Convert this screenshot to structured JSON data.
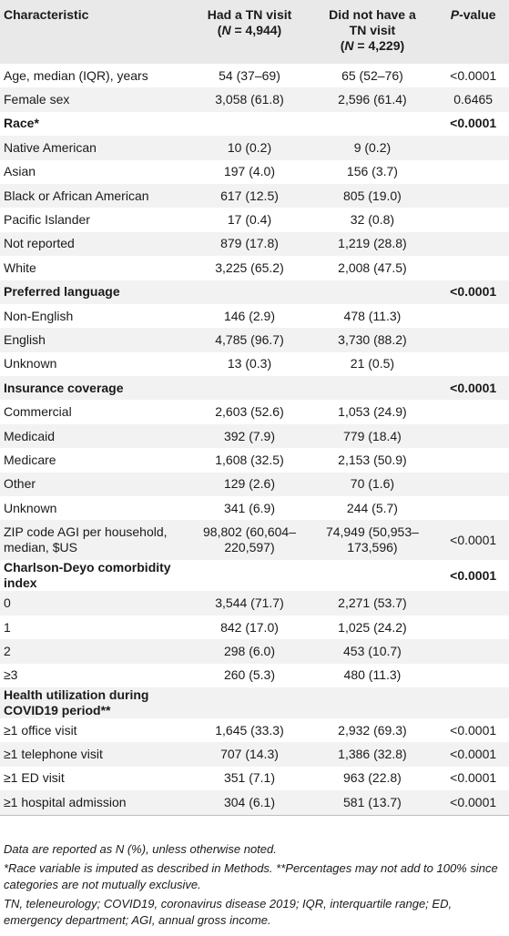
{
  "header": {
    "characteristic": "Characteristic",
    "tn_line1": "Had a TN visit",
    "tn_line2": "(N = 4,944)",
    "notn_line1": "Did not have a",
    "notn_line2": "TN visit",
    "notn_line3": "(N = 4,229)",
    "pvalue": "P-value"
  },
  "rows": [
    {
      "label": "Age, median (IQR), years",
      "tn": "54 (37–69)",
      "notn": "65 (52–76)",
      "p": "<0.0001"
    },
    {
      "label": "Female sex",
      "tn": "3,058 (61.8)",
      "notn": "2,596 (61.4)",
      "p": "0.6465"
    },
    {
      "label": "Race*",
      "tn": "",
      "notn": "",
      "p": "<0.0001"
    },
    {
      "label": "Native American",
      "tn": "10 (0.2)",
      "notn": "9 (0.2)",
      "p": ""
    },
    {
      "label": "Asian",
      "tn": "197 (4.0)",
      "notn": "156 (3.7)",
      "p": ""
    },
    {
      "label": "Black or African American",
      "tn": "617 (12.5)",
      "notn": "805 (19.0)",
      "p": ""
    },
    {
      "label": "Pacific Islander",
      "tn": "17 (0.4)",
      "notn": "32 (0.8)",
      "p": ""
    },
    {
      "label": "Not reported",
      "tn": "879 (17.8)",
      "notn": "1,219 (28.8)",
      "p": ""
    },
    {
      "label": "White",
      "tn": "3,225 (65.2)",
      "notn": "2,008 (47.5)",
      "p": ""
    },
    {
      "label": "Preferred language",
      "tn": "",
      "notn": "",
      "p": "<0.0001"
    },
    {
      "label": "Non-English",
      "tn": "146 (2.9)",
      "notn": "478 (11.3)",
      "p": ""
    },
    {
      "label": "English",
      "tn": "4,785 (96.7)",
      "notn": "3,730 (88.2)",
      "p": ""
    },
    {
      "label": "Unknown",
      "tn": "13 (0.3)",
      "notn": "21 (0.5)",
      "p": ""
    },
    {
      "label": "Insurance coverage",
      "tn": "",
      "notn": "",
      "p": "<0.0001"
    },
    {
      "label": "Commercial",
      "tn": "2,603 (52.6)",
      "notn": "1,053 (24.9)",
      "p": ""
    },
    {
      "label": "Medicaid",
      "tn": "392 (7.9)",
      "notn": "779 (18.4)",
      "p": ""
    },
    {
      "label": "Medicare",
      "tn": "1,608 (32.5)",
      "notn": "2,153 (50.9)",
      "p": ""
    },
    {
      "label": "Other",
      "tn": "129 (2.6)",
      "notn": "70 (1.6)",
      "p": ""
    },
    {
      "label": "Unknown",
      "tn": "341 (6.9)",
      "notn": "244 (5.7)",
      "p": ""
    },
    {
      "label": "ZIP code AGI per household, median, $US",
      "tn": "98,802 (60,604–220,597)",
      "notn": "74,949 (50,953–173,596)",
      "p": "<0.0001"
    },
    {
      "label": "Charlson-Deyo comorbidity index",
      "tn": "",
      "notn": "",
      "p": "<0.0001"
    },
    {
      "label": "0",
      "tn": "3,544 (71.7)",
      "notn": "2,271 (53.7)",
      "p": ""
    },
    {
      "label": "1",
      "tn": "842 (17.0)",
      "notn": "1,025 (24.2)",
      "p": ""
    },
    {
      "label": "2",
      "tn": "298 (6.0)",
      "notn": "453 (10.7)",
      "p": ""
    },
    {
      "label": "≥3",
      "tn": "260 (5.3)",
      "notn": "480 (11.3)",
      "p": ""
    },
    {
      "label": "Health utilization during COVID19 period**",
      "tn": "",
      "notn": "",
      "p": ""
    },
    {
      "label": "≥1 office visit",
      "tn": "1,645 (33.3)",
      "notn": "2,932 (69.3)",
      "p": "<0.0001"
    },
    {
      "label": "≥1 telephone visit",
      "tn": "707 (14.3)",
      "notn": "1,386 (32.8)",
      "p": "<0.0001"
    },
    {
      "label": "≥1 ED visit",
      "tn": "351 (7.1)",
      "notn": "963 (22.8)",
      "p": "<0.0001"
    },
    {
      "label": "≥1 hospital admission",
      "tn": "304 (6.1)",
      "notn": "581 (13.7)",
      "p": "<0.0001"
    }
  ],
  "footnotes": {
    "note1": "Data are reported as N (%), unless otherwise noted.",
    "note2": "*Race variable is imputed as described in Methods. **Percentages may not add to 100% since categories are not mutually exclusive.",
    "note3": "TN, teleneurology; COVID19, coronavirus disease 2019; IQR, interquartile range; ED, emergency department; AGI, annual gross income."
  }
}
